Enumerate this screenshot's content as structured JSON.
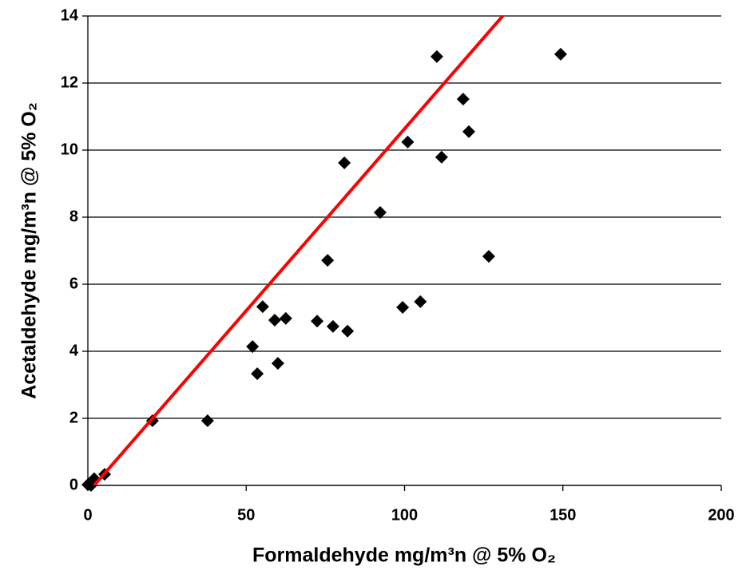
{
  "chart_data": {
    "type": "scatter",
    "x_label": "Formaldehyde mg/m³n @ 5% O₂",
    "y_label": "Acetaldehyde mg/m³n @ 5% O₂",
    "xlim": [
      0,
      200
    ],
    "xticks": [
      0,
      50,
      100,
      150,
      200
    ],
    "ylim": [
      0,
      14
    ],
    "yticks": [
      0,
      2,
      4,
      6,
      8,
      10,
      12,
      14
    ],
    "grid": true,
    "series": [
      {
        "type": "scatter",
        "color": "#000000",
        "x": [
          0,
          0.5,
          1,
          2,
          5.3,
          20.4,
          37.8,
          52,
          53.5,
          55.2,
          59,
          60,
          62.5,
          72.4,
          75.7,
          77.4,
          82,
          81,
          92.3,
          99.4,
          101,
          105,
          110.2,
          111.7,
          118.5,
          120.3,
          126.6,
          149.3
        ],
        "values": [
          0.02,
          0.05,
          0,
          0.2,
          0.33,
          1.93,
          1.93,
          4.14,
          3.33,
          5.33,
          4.93,
          3.64,
          4.98,
          4.9,
          6.71,
          4.74,
          4.6,
          9.62,
          8.14,
          5.31,
          10.24,
          5.48,
          12.79,
          9.79,
          11.52,
          10.55,
          6.83,
          12.86
        ]
      },
      {
        "type": "line",
        "color": "#ff0000",
        "x": [
          2,
          131
        ],
        "values": [
          0,
          14
        ]
      }
    ]
  }
}
